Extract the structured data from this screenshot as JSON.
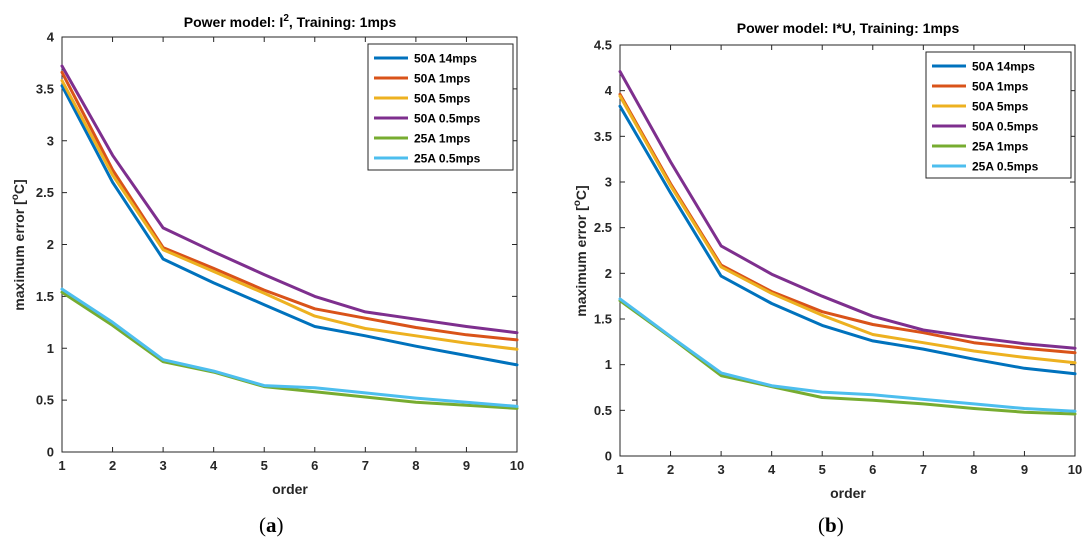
{
  "captions": [
    {
      "open": "(",
      "letter": "a",
      "close": ")"
    },
    {
      "open": "(",
      "letter": "b",
      "close": ")"
    }
  ],
  "chart_data": [
    {
      "type": "line",
      "title": "Power model: I², Training: 1mps",
      "title_parts": {
        "prefix": "Power model: I",
        "sup": "2",
        "suffix": ", Training: 1mps"
      },
      "xlabel": "order",
      "ylabel": "maximum error [°C]",
      "ylabel_parts": {
        "prefix": "maximum error [",
        "sup": "o",
        "suffix": "C]"
      },
      "xlim": [
        1,
        10
      ],
      "ylim": [
        0,
        4
      ],
      "xticks": [
        1,
        2,
        3,
        4,
        5,
        6,
        7,
        8,
        9,
        10
      ],
      "yticks": [
        0,
        0.5,
        1,
        1.5,
        2,
        2.5,
        3,
        3.5,
        4
      ],
      "ytick_labels": [
        "0",
        "0.5",
        "1",
        "1.5",
        "2",
        "2.5",
        "3",
        "3.5",
        "4"
      ],
      "grid": false,
      "legend_position": "top-right",
      "x": [
        1,
        2,
        3,
        4,
        5,
        6,
        7,
        8,
        9,
        10
      ],
      "series": [
        {
          "name": "50A 14mps",
          "color": "#0072BD",
          "values": [
            3.53,
            2.6,
            1.86,
            1.63,
            1.42,
            1.21,
            1.12,
            1.02,
            0.93,
            0.84
          ]
        },
        {
          "name": "50A 1mps",
          "color": "#D95319",
          "values": [
            3.66,
            2.72,
            1.97,
            1.77,
            1.56,
            1.38,
            1.29,
            1.2,
            1.13,
            1.08
          ]
        },
        {
          "name": "50A 5mps",
          "color": "#EDB120",
          "values": [
            3.58,
            2.67,
            1.95,
            1.74,
            1.53,
            1.31,
            1.19,
            1.12,
            1.05,
            0.99
          ]
        },
        {
          "name": "50A 0.5mps",
          "color": "#7E2F8E",
          "values": [
            3.72,
            2.86,
            2.16,
            1.93,
            1.71,
            1.5,
            1.35,
            1.28,
            1.21,
            1.15
          ]
        },
        {
          "name": "25A 1mps",
          "color": "#77AC30",
          "values": [
            1.54,
            1.22,
            0.87,
            0.77,
            0.63,
            0.58,
            0.53,
            0.48,
            0.45,
            0.42
          ]
        },
        {
          "name": "25A 0.5mps",
          "color": "#4DBEEE",
          "values": [
            1.57,
            1.25,
            0.89,
            0.78,
            0.64,
            0.62,
            0.57,
            0.52,
            0.48,
            0.44
          ]
        }
      ]
    },
    {
      "type": "line",
      "title": "Power model: I*U, Training: 1mps",
      "title_parts": {
        "prefix": "Power model: I*U, Training: 1mps",
        "sup": "",
        "suffix": ""
      },
      "xlabel": "order",
      "ylabel": "maximum error [°C]",
      "ylabel_parts": {
        "prefix": "maximum error [",
        "sup": "o",
        "suffix": "C]"
      },
      "xlim": [
        1,
        10
      ],
      "ylim": [
        0,
        4.5
      ],
      "xticks": [
        1,
        2,
        3,
        4,
        5,
        6,
        7,
        8,
        9,
        10
      ],
      "yticks": [
        0,
        0.5,
        1,
        1.5,
        2,
        2.5,
        3,
        3.5,
        4,
        4.5
      ],
      "ytick_labels": [
        "0",
        "0.5",
        "1",
        "1.5",
        "2",
        "2.5",
        "3",
        "3.5",
        "4",
        "4.5"
      ],
      "grid": false,
      "legend_position": "top-right",
      "x": [
        1,
        2,
        3,
        4,
        5,
        6,
        7,
        8,
        9,
        10
      ],
      "series": [
        {
          "name": "50A 14mps",
          "color": "#0072BD",
          "values": [
            3.83,
            2.88,
            1.97,
            1.67,
            1.43,
            1.26,
            1.17,
            1.06,
            0.96,
            0.9
          ]
        },
        {
          "name": "50A 1mps",
          "color": "#D95319",
          "values": [
            3.96,
            2.98,
            2.09,
            1.8,
            1.58,
            1.44,
            1.35,
            1.24,
            1.18,
            1.13
          ]
        },
        {
          "name": "50A 5mps",
          "color": "#EDB120",
          "values": [
            3.94,
            2.96,
            2.07,
            1.78,
            1.54,
            1.33,
            1.24,
            1.15,
            1.08,
            1.02
          ]
        },
        {
          "name": "50A 0.5mps",
          "color": "#7E2F8E",
          "values": [
            4.21,
            3.22,
            2.3,
            1.99,
            1.75,
            1.53,
            1.38,
            1.3,
            1.23,
            1.18
          ]
        },
        {
          "name": "25A 1mps",
          "color": "#77AC30",
          "values": [
            1.7,
            1.3,
            0.88,
            0.76,
            0.64,
            0.61,
            0.57,
            0.52,
            0.48,
            0.46
          ]
        },
        {
          "name": "25A 0.5mps",
          "color": "#4DBEEE",
          "values": [
            1.72,
            1.31,
            0.91,
            0.77,
            0.7,
            0.67,
            0.62,
            0.57,
            0.52,
            0.49
          ]
        }
      ]
    }
  ]
}
